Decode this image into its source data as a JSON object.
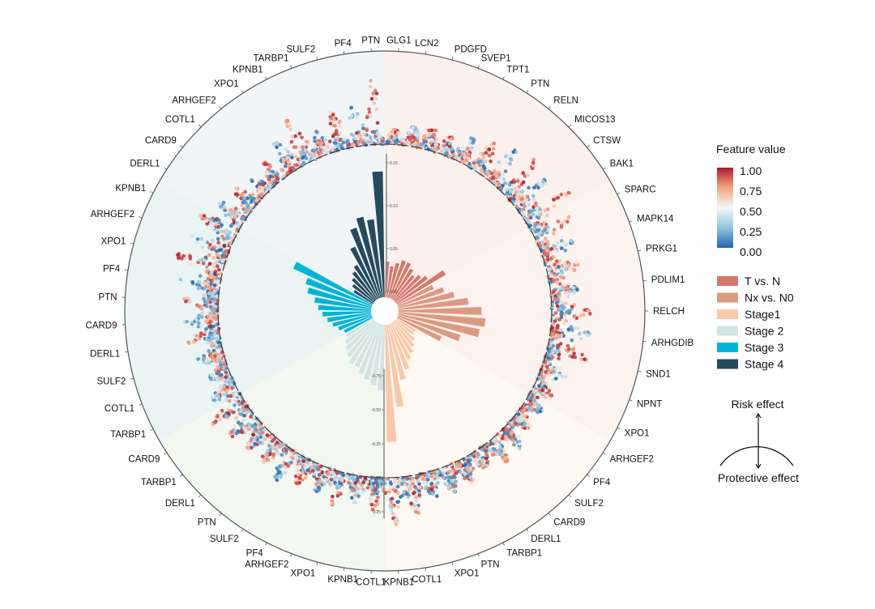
{
  "chart_data": {
    "type": "circular-bar-beeswarm",
    "bar_axis": {
      "ticks": [
        "0.00",
        "0.05",
        "0.10",
        "0.15"
      ],
      "range": [
        0,
        0.15
      ]
    },
    "shap_axis": {
      "ticks": [
        "-0.75",
        "-0.50",
        "-0.25",
        "0.00",
        "0.25"
      ],
      "range": [
        -0.75,
        0.3
      ]
    },
    "colorbar": {
      "title": "Feature value",
      "ticks": [
        "1.00",
        "0.75",
        "0.50",
        "0.25",
        "0.00"
      ],
      "low": "#2166ac",
      "mid": "#f7f7f7",
      "high": "#b2182b"
    },
    "risk_label": "Risk effect",
    "protective_label": "Protective effect",
    "sectors": [
      {
        "name": "T vs. N",
        "color": "#d4786c",
        "bg": "#fcf0ed",
        "genes": [
          {
            "name": "GLG1",
            "importance": 0.035,
            "shap": [
              -0.05,
              0.12
            ]
          },
          {
            "name": "LCN2",
            "importance": 0.03,
            "shap": [
              -0.08,
              0.15
            ]
          },
          {
            "name": "PDGFD",
            "importance": 0.035,
            "shap": [
              -0.1,
              0.18
            ]
          },
          {
            "name": "SVEP1",
            "importance": 0.04,
            "shap": [
              -0.15,
              0.1
            ]
          },
          {
            "name": "TPT1",
            "importance": 0.04,
            "shap": [
              -0.2,
              0.12
            ]
          },
          {
            "name": "PTN",
            "importance": 0.035,
            "shap": [
              -0.25,
              0.1
            ]
          },
          {
            "name": "RELN",
            "importance": 0.03,
            "shap": [
              -0.3,
              0.1
            ]
          },
          {
            "name": "MICOS13",
            "importance": 0.035,
            "shap": [
              -0.35,
              0.1
            ]
          },
          {
            "name": "CTSW",
            "importance": 0.04,
            "shap": [
              -0.3,
              0.12
            ]
          },
          {
            "name": "BAK1",
            "importance": 0.06,
            "shap": [
              -0.4,
              0.15
            ]
          }
        ]
      },
      {
        "name": "Nx vs. N0",
        "color": "#dc9a82",
        "bg": "#fdf3ee",
        "genes": [
          {
            "name": "SPARC",
            "importance": 0.04,
            "shap": [
              -0.3,
              0.12
            ]
          },
          {
            "name": "MAPK14",
            "importance": 0.05,
            "shap": [
              -0.25,
              0.12
            ]
          },
          {
            "name": "PRKG1",
            "importance": 0.06,
            "shap": [
              -0.25,
              0.15
            ]
          },
          {
            "name": "PDLIM1",
            "importance": 0.075,
            "shap": [
              -0.2,
              0.15
            ]
          },
          {
            "name": "RELCH",
            "importance": 0.09,
            "shap": [
              -0.3,
              0.15
            ]
          },
          {
            "name": "ARHGDIB",
            "importance": 0.095,
            "shap": [
              -0.3,
              0.1
            ]
          },
          {
            "name": "SND1",
            "importance": 0.09,
            "shap": [
              -0.3,
              0.1
            ]
          },
          {
            "name": "NPNT",
            "importance": 0.07,
            "shap": [
              -0.2,
              0.1
            ]
          },
          {
            "name": "XPO1",
            "importance": 0.05,
            "shap": [
              -0.15,
              0.1
            ]
          }
        ]
      },
      {
        "name": "Stage1",
        "color": "#f8c8a8",
        "bg": "#fdf8f1",
        "genes": [
          {
            "name": "ARHGEF2",
            "importance": 0.02,
            "shap": [
              -0.15,
              0.1
            ]
          },
          {
            "name": "PF4",
            "importance": 0.02,
            "shap": [
              -0.15,
              0.1
            ]
          },
          {
            "name": "SULF2",
            "importance": 0.025,
            "shap": [
              -0.2,
              0.12
            ]
          },
          {
            "name": "CARD9",
            "importance": 0.03,
            "shap": [
              -0.2,
              0.15
            ]
          },
          {
            "name": "DERL1",
            "importance": 0.035,
            "shap": [
              -0.15,
              0.15
            ]
          },
          {
            "name": "TARBP1",
            "importance": 0.04,
            "shap": [
              -0.2,
              0.15
            ]
          },
          {
            "name": "PTN",
            "importance": 0.05,
            "shap": [
              -0.2,
              0.2
            ]
          },
          {
            "name": "XPO1",
            "importance": 0.06,
            "shap": [
              -0.15,
              0.2
            ]
          },
          {
            "name": "COTL1",
            "importance": 0.09,
            "shap": [
              -0.25,
              0.3
            ]
          },
          {
            "name": "KPNB1",
            "importance": 0.13,
            "shap": [
              -0.35,
              0.32
            ]
          }
        ]
      },
      {
        "name": "Stage 2",
        "color": "#d2e4e2",
        "bg": "#f2f7f0",
        "genes": [
          {
            "name": "COTL1",
            "importance": 0.07,
            "shap": [
              -0.25,
              0.12
            ]
          },
          {
            "name": "KPNB1",
            "importance": 0.065,
            "shap": [
              -0.2,
              0.15
            ]
          },
          {
            "name": "XPO1",
            "importance": 0.06,
            "shap": [
              -0.25,
              0.12
            ]
          },
          {
            "name": "ARHGEF2",
            "importance": 0.055,
            "shap": [
              -0.2,
              0.15
            ]
          },
          {
            "name": "PF4",
            "importance": 0.05,
            "shap": [
              -0.2,
              0.12
            ]
          },
          {
            "name": "SULF2",
            "importance": 0.05,
            "shap": [
              -0.25,
              0.15
            ]
          },
          {
            "name": "PTN",
            "importance": 0.045,
            "shap": [
              -0.2,
              0.15
            ]
          },
          {
            "name": "DERL1",
            "importance": 0.04,
            "shap": [
              -0.2,
              0.2
            ]
          },
          {
            "name": "TARBP1",
            "importance": 0.035,
            "shap": [
              -0.25,
              0.2
            ]
          },
          {
            "name": "CARD9",
            "importance": 0.03,
            "shap": [
              -0.2,
              0.3
            ]
          }
        ]
      },
      {
        "name": "Stage 3",
        "color": "#00b4d8",
        "bg": "#eaf4f3",
        "genes": [
          {
            "name": "TARBP1",
            "importance": 0.03,
            "shap": [
              -0.2,
              0.15
            ]
          },
          {
            "name": "COTL1",
            "importance": 0.035,
            "shap": [
              -0.15,
              0.15
            ]
          },
          {
            "name": "SULF2",
            "importance": 0.04,
            "shap": [
              -0.2,
              0.12
            ]
          },
          {
            "name": "DERL1",
            "importance": 0.045,
            "shap": [
              -0.25,
              0.12
            ]
          },
          {
            "name": "CARD9",
            "importance": 0.05,
            "shap": [
              -0.25,
              0.1
            ]
          },
          {
            "name": "PTN",
            "importance": 0.055,
            "shap": [
              -0.25,
              0.12
            ]
          },
          {
            "name": "PF4",
            "importance": 0.06,
            "shap": [
              -0.3,
              0.15
            ]
          },
          {
            "name": "XPO1",
            "importance": 0.07,
            "shap": [
              -0.35,
              0.2
            ]
          },
          {
            "name": "ARHGEF2",
            "importance": 0.075,
            "shap": [
              -0.3,
              0.2
            ]
          },
          {
            "name": "KPNB1",
            "importance": 0.095,
            "shap": [
              -0.3,
              0.25
            ]
          }
        ]
      },
      {
        "name": "Stage 4",
        "color": "#264a5e",
        "bg": "#f2f5f8",
        "genes": [
          {
            "name": "DERL1",
            "importance": 0.02,
            "shap": [
              -0.15,
              0.25
            ]
          },
          {
            "name": "CARD9",
            "importance": 0.025,
            "shap": [
              -0.12,
              0.2
            ]
          },
          {
            "name": "COTL1",
            "importance": 0.03,
            "shap": [
              -0.1,
              0.15
            ]
          },
          {
            "name": "ARHGEF2",
            "importance": 0.035,
            "shap": [
              -0.1,
              0.18
            ]
          },
          {
            "name": "XPO1",
            "importance": 0.04,
            "shap": [
              -0.12,
              0.25
            ]
          },
          {
            "name": "KPNB1",
            "importance": 0.06,
            "shap": [
              -0.1,
              0.35
            ]
          },
          {
            "name": "TARBP1",
            "importance": 0.08,
            "shap": [
              -0.12,
              0.2
            ]
          },
          {
            "name": "SULF2",
            "importance": 0.09,
            "shap": [
              -0.1,
              0.3
            ]
          },
          {
            "name": "PF4",
            "importance": 0.085,
            "shap": [
              -0.1,
              0.32
            ]
          },
          {
            "name": "PTN",
            "importance": 0.14,
            "shap": [
              -0.1,
              0.47
            ]
          }
        ]
      }
    ]
  }
}
